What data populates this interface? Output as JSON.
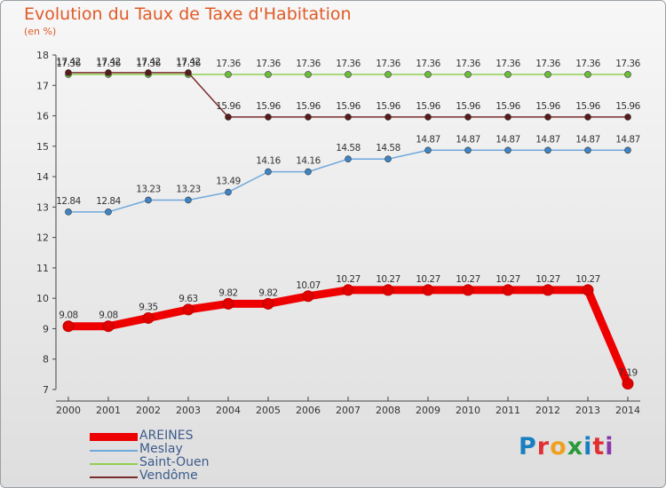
{
  "title": "Evolution du Taux de Taxe d'Habitation",
  "subtitle": "(en %)",
  "logo": {
    "letters": [
      {
        "char": "P",
        "color": "#1a7fc0"
      },
      {
        "char": "r",
        "color": "#e03030"
      },
      {
        "char": "o",
        "color": "#f0a020"
      },
      {
        "char": "x",
        "color": "#2a9a3a"
      },
      {
        "char": "i",
        "color": "#1a7fc0"
      },
      {
        "char": "t",
        "color": "#e03030"
      },
      {
        "char": "i",
        "color": "#8a3aa8"
      }
    ]
  },
  "chart_data": {
    "type": "line",
    "title": "Evolution du Taux de Taxe d'Habitation",
    "subtitle": "(en %)",
    "xlabel": "",
    "ylabel": "",
    "x": [
      "2000",
      "2001",
      "2002",
      "2003",
      "2004",
      "2005",
      "2006",
      "2007",
      "2008",
      "2009",
      "2010",
      "2011",
      "2012",
      "2013",
      "2014"
    ],
    "ylim": [
      7,
      18
    ],
    "yticks": [
      7,
      8,
      9,
      10,
      11,
      12,
      13,
      14,
      15,
      16,
      17,
      18
    ],
    "ytick_labels": [
      "7",
      "8",
      "9",
      "10",
      "11",
      "12",
      "13",
      "14",
      "15",
      "16",
      "17",
      "18"
    ],
    "grid": false,
    "legend_position": "bottom-left",
    "series": [
      {
        "name": "AREINES",
        "color": "#ee0000",
        "width": "thick",
        "marker_color": "#e00000",
        "values": [
          9.08,
          9.08,
          9.35,
          9.63,
          9.82,
          9.82,
          10.07,
          10.27,
          10.27,
          10.27,
          10.27,
          10.27,
          10.27,
          10.27,
          7.19
        ],
        "labels": [
          "9.08",
          "9.08",
          "9.35",
          "9.63",
          "9.82",
          "9.82",
          "10.07",
          "10.27",
          "10.27",
          "10.27",
          "10.27",
          "10.27",
          "10.27",
          "10.27",
          "7.19"
        ]
      },
      {
        "name": "Meslay",
        "color": "#6fa8dc",
        "width": "thin",
        "marker_color": "#3d85c6",
        "values": [
          12.84,
          12.84,
          13.23,
          13.23,
          13.49,
          14.16,
          14.16,
          14.58,
          14.58,
          14.87,
          14.87,
          14.87,
          14.87,
          14.87,
          14.87
        ],
        "labels": [
          "12.84",
          "12.84",
          "13.23",
          "13.23",
          "13.49",
          "14.16",
          "14.16",
          "14.58",
          "14.58",
          "14.87",
          "14.87",
          "14.87",
          "14.87",
          "14.87",
          "14.87"
        ]
      },
      {
        "name": "Saint-Ouen",
        "color": "#8fd14f",
        "width": "thin",
        "marker_color": "#6abf3a",
        "values": [
          17.36,
          17.36,
          17.36,
          17.36,
          17.36,
          17.36,
          17.36,
          17.36,
          17.36,
          17.36,
          17.36,
          17.36,
          17.36,
          17.36,
          17.36
        ],
        "labels": [
          "17.36",
          "17.36",
          "17.36",
          "17.36",
          "17.36",
          "17.36",
          "17.36",
          "17.36",
          "17.36",
          "17.36",
          "17.36",
          "17.36",
          "17.36",
          "17.36",
          "17.36"
        ]
      },
      {
        "name": "Vendôme",
        "color": "#7a2c2c",
        "width": "thin",
        "marker_color": "#5a1a1a",
        "values": [
          17.42,
          17.42,
          17.42,
          17.42,
          15.96,
          15.96,
          15.96,
          15.96,
          15.96,
          15.96,
          15.96,
          15.96,
          15.96,
          15.96,
          15.96
        ],
        "labels": [
          "17.42",
          "17.42",
          "17.42",
          "17.42",
          "15.96",
          "15.96",
          "15.96",
          "15.96",
          "15.96",
          "15.96",
          "15.96",
          "15.96",
          "15.96",
          "15.96",
          "15.96"
        ]
      }
    ]
  }
}
